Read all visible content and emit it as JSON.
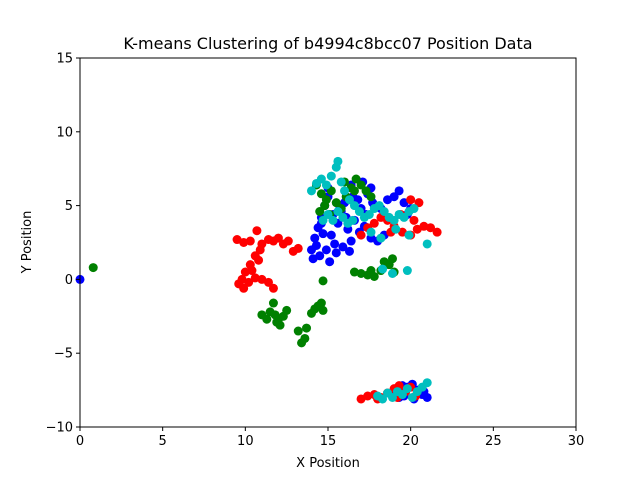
{
  "chart_data": {
    "type": "scatter",
    "title": "K-means Clustering of b4994c8bcc07 Position Data",
    "xlabel": "X Position",
    "ylabel": "Y Position",
    "xlim": [
      0,
      30
    ],
    "ylim": [
      -10,
      15
    ],
    "xticks": [
      0,
      5,
      10,
      15,
      20,
      25,
      30
    ],
    "yticks": [
      -10,
      -5,
      0,
      5,
      10,
      15
    ],
    "xtick_labels": [
      "0",
      "5",
      "10",
      "15",
      "20",
      "25",
      "30"
    ],
    "ytick_labels": [
      "−10",
      "−5",
      "0",
      "5",
      "10",
      "15"
    ],
    "grid": false,
    "series": [
      {
        "color": "#0000ff",
        "points": [
          [
            0.0,
            0.0
          ],
          [
            14.0,
            2.0
          ],
          [
            14.2,
            2.8
          ],
          [
            14.4,
            3.5
          ],
          [
            14.6,
            4.2
          ],
          [
            14.8,
            5.0
          ],
          [
            15.0,
            5.6
          ],
          [
            15.2,
            3.0
          ],
          [
            15.4,
            2.4
          ],
          [
            15.6,
            3.8
          ],
          [
            15.8,
            4.6
          ],
          [
            16.0,
            5.2
          ],
          [
            16.2,
            3.4
          ],
          [
            16.4,
            2.6
          ],
          [
            16.6,
            4.0
          ],
          [
            16.8,
            5.4
          ],
          [
            17.0,
            4.8
          ],
          [
            17.2,
            3.6
          ],
          [
            17.4,
            5.8
          ],
          [
            17.6,
            6.2
          ],
          [
            17.8,
            5.0
          ],
          [
            14.1,
            1.4
          ],
          [
            14.5,
            1.6
          ],
          [
            14.9,
            2.0
          ],
          [
            15.1,
            1.2
          ],
          [
            15.5,
            1.8
          ],
          [
            15.9,
            2.2
          ],
          [
            16.3,
            1.9
          ],
          [
            14.3,
            2.3
          ],
          [
            14.7,
            3.1
          ],
          [
            15.3,
            4.4
          ],
          [
            15.7,
            5.0
          ],
          [
            16.1,
            4.2
          ],
          [
            16.5,
            5.6
          ],
          [
            16.9,
            3.2
          ],
          [
            17.3,
            4.4
          ],
          [
            17.7,
            5.2
          ],
          [
            18.2,
            4.8
          ],
          [
            18.6,
            5.4
          ],
          [
            19.0,
            5.6
          ],
          [
            19.3,
            6.0
          ],
          [
            19.6,
            5.2
          ],
          [
            20.0,
            4.8
          ],
          [
            18.4,
            3.0
          ],
          [
            18.0,
            2.6
          ],
          [
            17.6,
            2.8
          ],
          [
            19.8,
            4.4
          ],
          [
            15.0,
            6.2
          ],
          [
            16.4,
            6.4
          ],
          [
            17.1,
            6.6
          ],
          [
            14.6,
            3.8
          ],
          [
            19.2,
            -7.4
          ],
          [
            19.5,
            -7.2
          ],
          [
            19.8,
            -7.3
          ],
          [
            20.1,
            -7.1
          ],
          [
            20.4,
            -7.5
          ],
          [
            20.7,
            -7.8
          ],
          [
            21.0,
            -8.0
          ],
          [
            19.6,
            -7.9
          ],
          [
            20.2,
            -8.1
          ],
          [
            20.8,
            -7.6
          ],
          [
            18.9,
            -7.8
          ],
          [
            19.3,
            -8.0
          ]
        ]
      },
      {
        "color": "#ff0000",
        "points": [
          [
            9.5,
            2.7
          ],
          [
            9.9,
            2.5
          ],
          [
            10.3,
            2.6
          ],
          [
            10.7,
            3.3
          ],
          [
            11.0,
            2.4
          ],
          [
            11.4,
            2.7
          ],
          [
            11.7,
            2.6
          ],
          [
            12.0,
            2.8
          ],
          [
            12.3,
            2.4
          ],
          [
            12.6,
            2.6
          ],
          [
            12.9,
            1.9
          ],
          [
            13.2,
            2.1
          ],
          [
            10.9,
            2.0
          ],
          [
            10.6,
            1.6
          ],
          [
            10.3,
            1.0
          ],
          [
            10.0,
            0.5
          ],
          [
            9.8,
            0.0
          ],
          [
            9.6,
            -0.3
          ],
          [
            9.9,
            -0.6
          ],
          [
            10.2,
            -0.2
          ],
          [
            10.6,
            0.1
          ],
          [
            11.0,
            0.0
          ],
          [
            11.4,
            -0.2
          ],
          [
            11.7,
            -0.6
          ],
          [
            10.4,
            0.6
          ],
          [
            10.8,
            1.3
          ],
          [
            17.0,
            3.0
          ],
          [
            17.4,
            3.5
          ],
          [
            17.8,
            3.8
          ],
          [
            18.2,
            4.2
          ],
          [
            18.6,
            4.0
          ],
          [
            19.0,
            3.6
          ],
          [
            19.5,
            3.2
          ],
          [
            20.0,
            3.0
          ],
          [
            20.4,
            3.4
          ],
          [
            20.8,
            3.6
          ],
          [
            21.2,
            3.5
          ],
          [
            21.6,
            3.2
          ],
          [
            20.2,
            4.0
          ],
          [
            20.5,
            5.2
          ],
          [
            20.0,
            5.4
          ],
          [
            19.4,
            4.4
          ],
          [
            18.8,
            3.2
          ],
          [
            17.0,
            -8.1
          ],
          [
            17.4,
            -7.9
          ],
          [
            17.8,
            -7.8
          ],
          [
            18.2,
            -8.0
          ],
          [
            18.6,
            -7.7
          ],
          [
            19.0,
            -7.4
          ],
          [
            19.3,
            -7.2
          ],
          [
            19.7,
            -7.6
          ],
          [
            20.0,
            -7.3
          ],
          [
            20.3,
            -7.9
          ],
          [
            18.0,
            -8.1
          ],
          [
            19.2,
            -8.0
          ]
        ]
      },
      {
        "color": "#008000",
        "points": [
          [
            0.8,
            0.8
          ],
          [
            11.0,
            -2.4
          ],
          [
            11.3,
            -2.7
          ],
          [
            11.5,
            -2.2
          ],
          [
            11.7,
            -1.6
          ],
          [
            11.9,
            -2.9
          ],
          [
            12.1,
            -3.1
          ],
          [
            12.3,
            -2.5
          ],
          [
            12.5,
            -2.1
          ],
          [
            11.8,
            -2.4
          ],
          [
            12.0,
            -2.7
          ],
          [
            13.2,
            -3.5
          ],
          [
            13.4,
            -4.3
          ],
          [
            13.6,
            -4.0
          ],
          [
            13.7,
            -3.3
          ],
          [
            14.0,
            -2.3
          ],
          [
            14.2,
            -2.0
          ],
          [
            14.4,
            -1.8
          ],
          [
            14.6,
            -1.6
          ],
          [
            14.7,
            -2.1
          ],
          [
            14.7,
            -0.1
          ],
          [
            14.3,
            6.4
          ],
          [
            14.6,
            5.8
          ],
          [
            14.9,
            5.4
          ],
          [
            15.2,
            6.0
          ],
          [
            15.5,
            5.2
          ],
          [
            15.8,
            4.8
          ],
          [
            16.1,
            5.6
          ],
          [
            16.4,
            6.2
          ],
          [
            16.7,
            6.8
          ],
          [
            17.0,
            6.4
          ],
          [
            17.3,
            6.0
          ],
          [
            17.6,
            5.6
          ],
          [
            14.5,
            4.6
          ],
          [
            14.8,
            5.0
          ],
          [
            15.1,
            4.4
          ],
          [
            16.0,
            6.6
          ],
          [
            16.6,
            6.0
          ],
          [
            17.0,
            0.4
          ],
          [
            17.4,
            0.3
          ],
          [
            17.8,
            0.2
          ],
          [
            18.2,
            0.6
          ],
          [
            18.4,
            1.2
          ],
          [
            18.7,
            1.0
          ],
          [
            19.0,
            0.5
          ],
          [
            16.6,
            0.5
          ],
          [
            17.6,
            0.6
          ],
          [
            18.9,
            1.4
          ]
        ]
      },
      {
        "color": "#00bfbf",
        "points": [
          [
            14.0,
            6.0
          ],
          [
            14.3,
            6.5
          ],
          [
            14.6,
            6.8
          ],
          [
            14.9,
            6.4
          ],
          [
            15.2,
            7.0
          ],
          [
            15.5,
            7.6
          ],
          [
            15.6,
            8.0
          ],
          [
            15.8,
            6.6
          ],
          [
            16.0,
            6.0
          ],
          [
            16.3,
            5.4
          ],
          [
            16.6,
            5.0
          ],
          [
            16.9,
            4.6
          ],
          [
            17.2,
            4.2
          ],
          [
            17.5,
            4.4
          ],
          [
            17.8,
            4.8
          ],
          [
            18.1,
            5.0
          ],
          [
            18.4,
            4.6
          ],
          [
            18.7,
            4.2
          ],
          [
            19.0,
            4.0
          ],
          [
            19.3,
            4.4
          ],
          [
            19.6,
            4.2
          ],
          [
            19.9,
            4.6
          ],
          [
            20.2,
            4.8
          ],
          [
            14.7,
            4.0
          ],
          [
            15.0,
            4.4
          ],
          [
            15.3,
            4.0
          ],
          [
            15.6,
            4.6
          ],
          [
            15.9,
            4.2
          ],
          [
            16.2,
            3.8
          ],
          [
            16.5,
            4.0
          ],
          [
            17.6,
            3.2
          ],
          [
            18.2,
            2.8
          ],
          [
            19.1,
            3.4
          ],
          [
            19.9,
            3.0
          ],
          [
            18.3,
            0.7
          ],
          [
            18.9,
            0.4
          ],
          [
            19.8,
            0.6
          ],
          [
            21.0,
            2.4
          ],
          [
            18.0,
            -7.9
          ],
          [
            18.3,
            -8.1
          ],
          [
            18.6,
            -7.7
          ],
          [
            18.9,
            -8.0
          ],
          [
            19.2,
            -7.6
          ],
          [
            19.5,
            -7.8
          ],
          [
            19.8,
            -7.4
          ],
          [
            20.1,
            -8.0
          ],
          [
            20.4,
            -7.6
          ],
          [
            20.7,
            -7.3
          ],
          [
            21.0,
            -7.0
          ]
        ]
      }
    ]
  }
}
